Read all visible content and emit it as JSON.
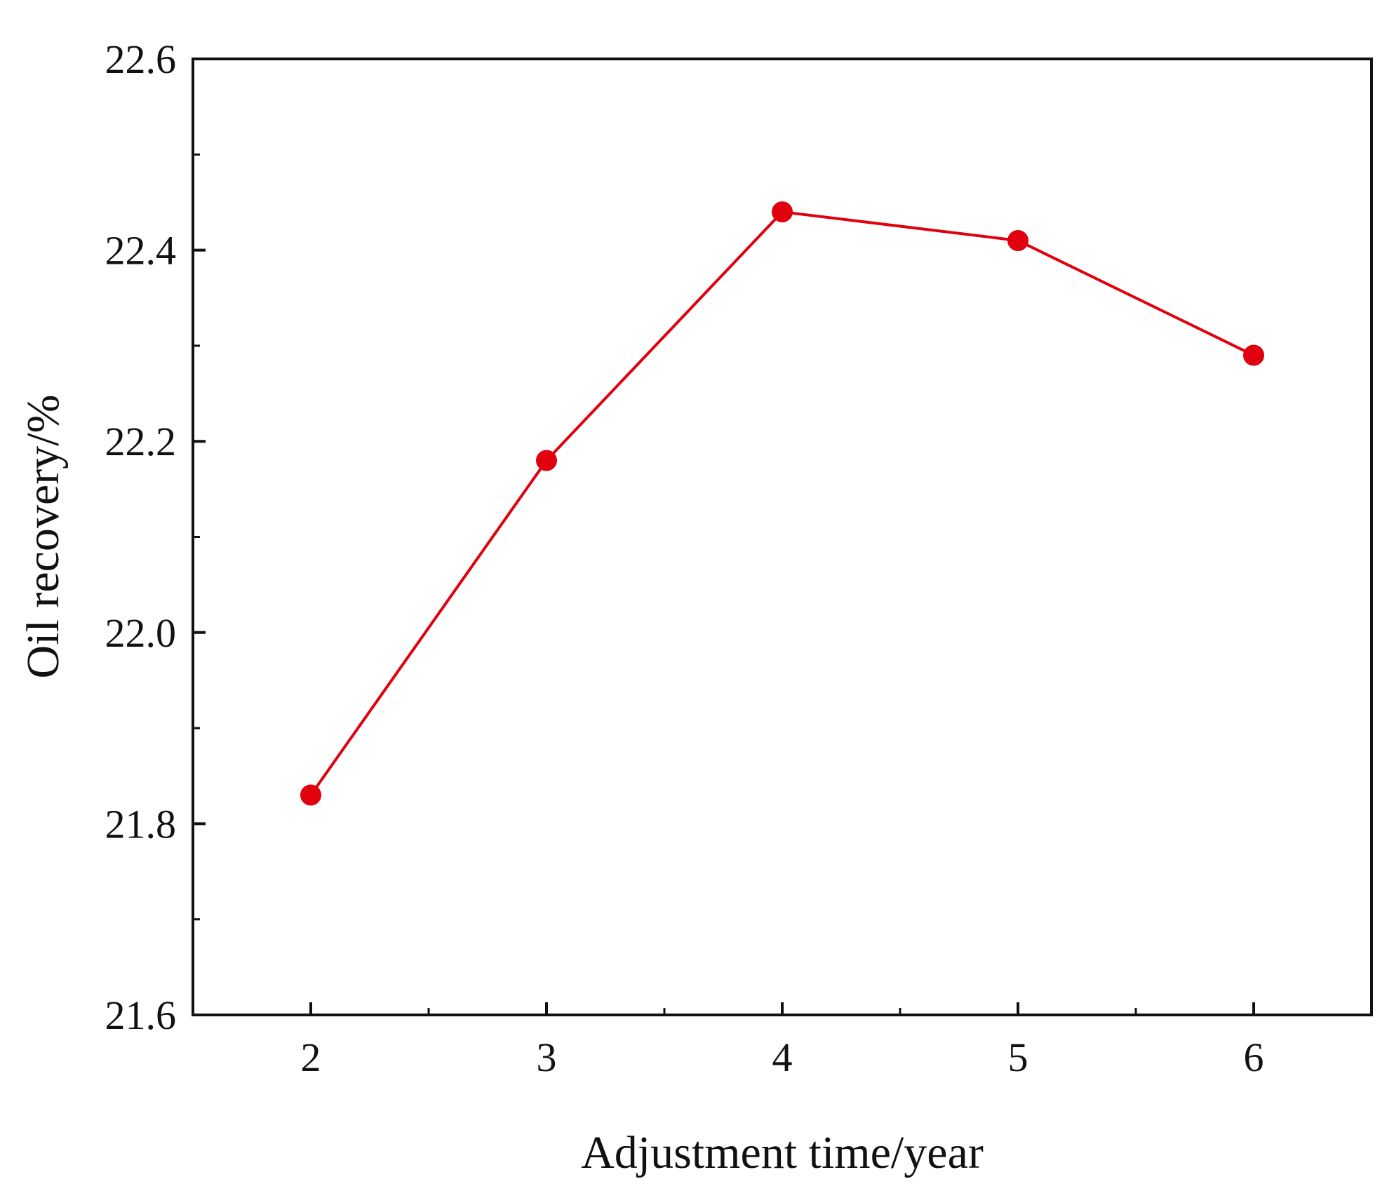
{
  "chart_data": {
    "type": "line",
    "title": "",
    "xlabel": "Adjustment time/year",
    "ylabel": "Oil recovery/%",
    "x": [
      2,
      3,
      4,
      5,
      6
    ],
    "xlim": [
      1.5,
      6.5
    ],
    "ylim": [
      21.6,
      22.6
    ],
    "x_ticks": [
      2,
      3,
      4,
      5,
      6
    ],
    "x_tick_labels": [
      "2",
      "3",
      "4",
      "5",
      "6"
    ],
    "x_minor_ticks": [
      2.5,
      3.5,
      4.5,
      5.5
    ],
    "y_ticks": [
      21.6,
      21.8,
      22.0,
      22.2,
      22.4,
      22.6
    ],
    "y_tick_labels": [
      "21.6",
      "21.8",
      "22.0",
      "22.2",
      "22.4",
      "22.6"
    ],
    "y_minor_ticks": [
      21.7,
      21.9,
      22.1,
      22.3,
      22.5
    ],
    "grid": false,
    "legend": "none",
    "series": [
      {
        "values": [
          21.83,
          22.18,
          22.44,
          22.41,
          22.29
        ],
        "color": "#e0000e",
        "marker": "circle"
      }
    ]
  }
}
